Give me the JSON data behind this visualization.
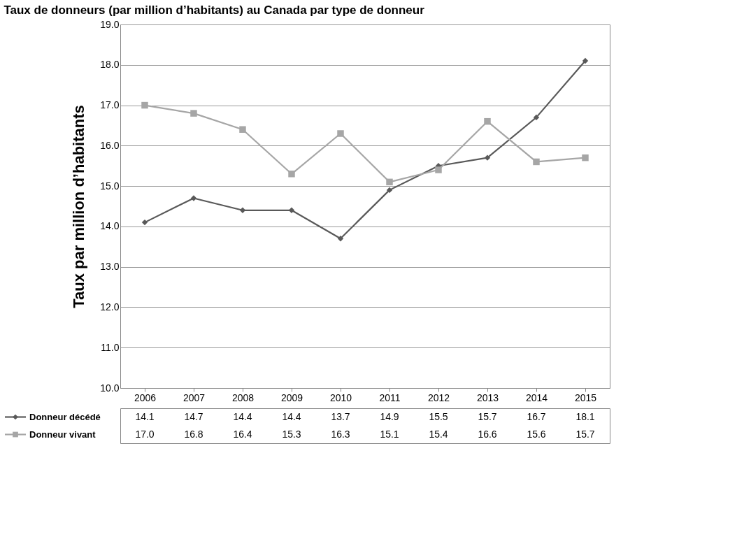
{
  "chart_data": {
    "type": "line",
    "title": "Taux de donneurs (par million d’habitants) au Canada par type de donneur",
    "ylabel": "Taux par million d’habitants",
    "categories": [
      "2006",
      "2007",
      "2008",
      "2009",
      "2010",
      "2011",
      "2012",
      "2013",
      "2014",
      "2015"
    ],
    "series": [
      {
        "name": "Donneur décédé",
        "color": "#595959",
        "marker": "diamond",
        "values": [
          14.1,
          14.7,
          14.4,
          14.4,
          13.7,
          14.9,
          15.5,
          15.7,
          16.7,
          18.1
        ],
        "value_labels": [
          "14.1",
          "14.7",
          "14.4",
          "14.4",
          "13.7",
          "14.9",
          "15.5",
          "15.7",
          "16.7",
          "18.1"
        ]
      },
      {
        "name": "Donneur vivant",
        "color": "#a6a6a6",
        "marker": "square",
        "values": [
          17.0,
          16.8,
          16.4,
          15.3,
          16.3,
          15.1,
          15.4,
          16.6,
          15.6,
          15.7
        ],
        "value_labels": [
          "17.0",
          "16.8",
          "16.4",
          "15.3",
          "16.3",
          "15.1",
          "15.4",
          "16.6",
          "15.6",
          "15.7"
        ]
      }
    ],
    "ylim": [
      10,
      19
    ],
    "yticks": [
      {
        "value": 10,
        "label": "10.0"
      },
      {
        "value": 11,
        "label": "11.0"
      },
      {
        "value": 12,
        "label": "12.0"
      },
      {
        "value": 13,
        "label": "13.0"
      },
      {
        "value": 14,
        "label": "14.0"
      },
      {
        "value": 15,
        "label": "15.0"
      },
      {
        "value": 16,
        "label": "16.0"
      },
      {
        "value": 17,
        "label": "17.0"
      },
      {
        "value": 18,
        "label": "18.0"
      },
      {
        "value": 19,
        "label": "19.0"
      }
    ],
    "grid": "y",
    "legend": "bottom left",
    "line_style": "solid"
  }
}
